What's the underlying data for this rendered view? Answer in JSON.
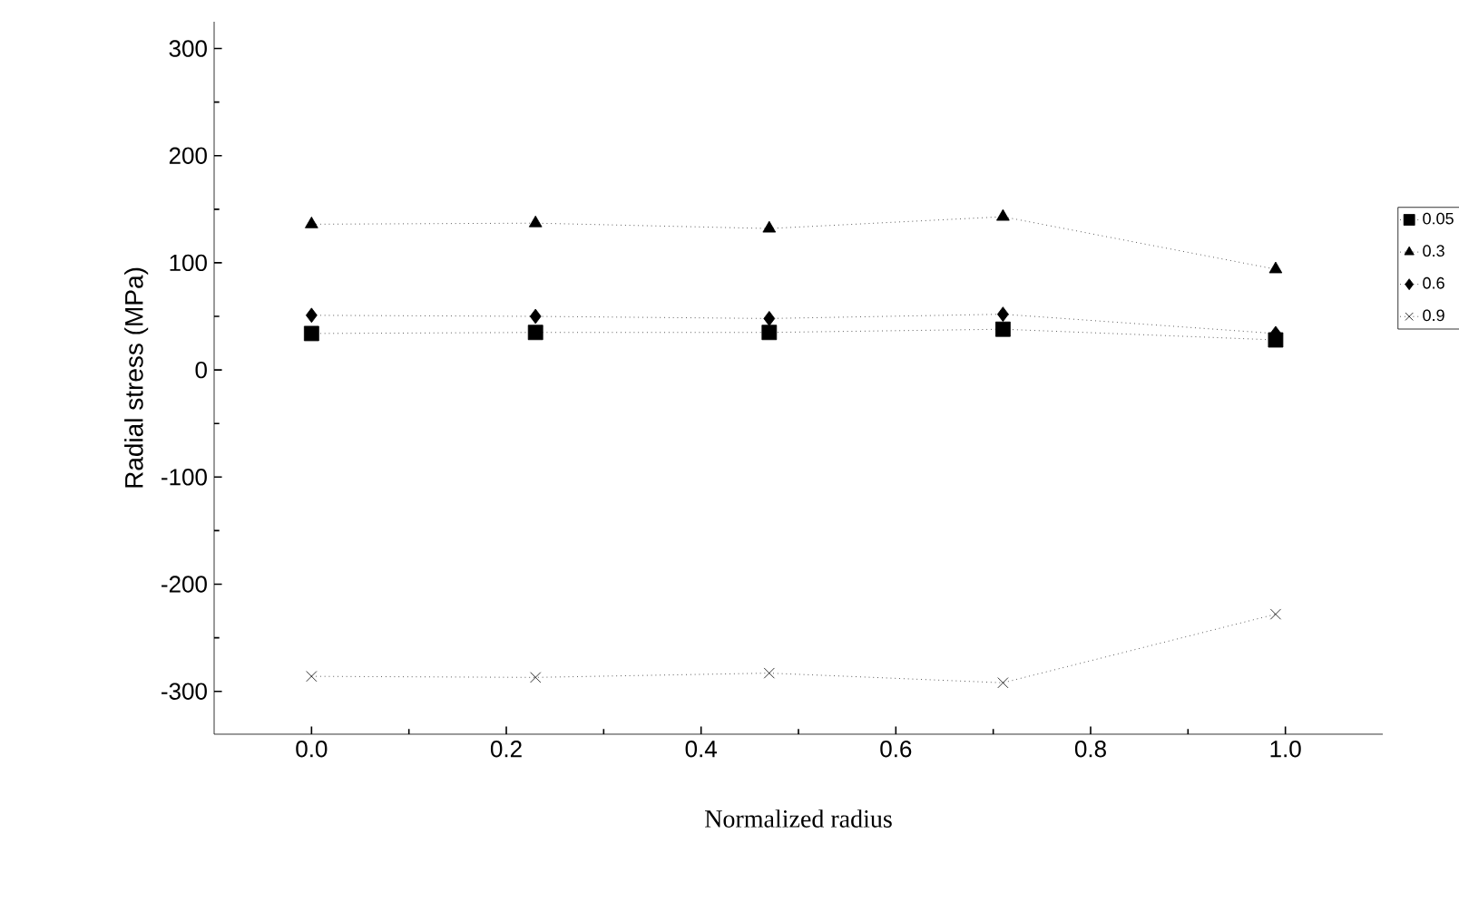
{
  "chart_data": {
    "type": "line",
    "xlabel": "Normalized radius",
    "ylabel": "Radial stress (MPa)",
    "x": [
      0,
      0.23,
      0.47,
      0.71,
      0.99
    ],
    "series": [
      {
        "name": "0.05",
        "color": "#000000",
        "marker": "square",
        "values": [
          34,
          35,
          35,
          38,
          28
        ]
      },
      {
        "name": "0.3",
        "color": "#000000",
        "marker": "triangle",
        "values": [
          136,
          137,
          132,
          143,
          94
        ]
      },
      {
        "name": "0.6",
        "color": "#000000",
        "marker": "diamond",
        "values": [
          51,
          50,
          48,
          52,
          34
        ]
      },
      {
        "name": "0.9",
        "color": "#000000",
        "marker": "cross",
        "values": [
          -286,
          -287,
          -283,
          -292,
          -228
        ]
      }
    ],
    "xlim": [
      -0.1,
      1.1
    ],
    "xticks": [
      {
        "value": 0,
        "label": "0.0"
      },
      0.2,
      0.4,
      0.6,
      0.8,
      {
        "value": 1,
        "label": "1.0"
      }
    ],
    "ylim": [
      -340,
      325
    ],
    "yticks": [
      -300,
      -200,
      -100,
      0,
      100,
      200,
      300
    ],
    "grid": false,
    "legend": "right",
    "line_style": "dotted"
  }
}
